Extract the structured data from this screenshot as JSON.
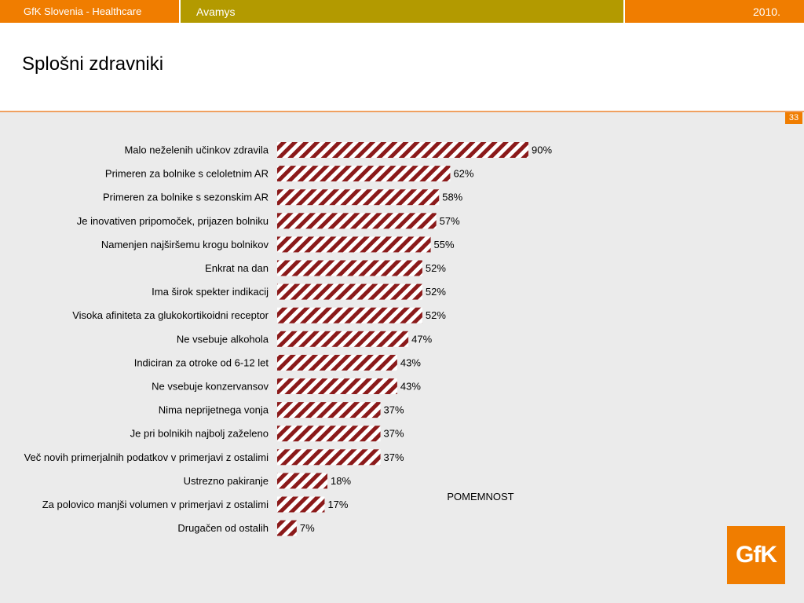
{
  "header": {
    "left": "GfK Slovenia - Healthcare",
    "middle": "Avamys",
    "right": "2010."
  },
  "page_title": "Splošni zdravniki",
  "page_number": "33",
  "logo_text": "GfK",
  "colors": {
    "accent": "#f07d00",
    "olive": "#b39a00",
    "bar_red": "#8b1a1a",
    "panel": "#ebebeb"
  },
  "chart_data": {
    "type": "bar",
    "orientation": "horizontal",
    "annotation": "POMEMNOST",
    "categories": [
      "Malo neželenih učinkov zdravila",
      "Primeren za bolnike s celoletnim AR",
      "Primeren za bolnike s sezonskim AR",
      "Je inovativen pripomoček,  prijazen bolniku",
      "Namenjen najširšemu krogu bolnikov",
      "Enkrat na dan",
      "Ima širok spekter indikacij",
      "Visoka afiniteta za glukokortikoidni receptor",
      "Ne vsebuje alkohola",
      "Indiciran za otroke od 6-12 let",
      "Ne vsebuje konzervansov",
      "Nima neprijetnega vonja",
      "Je pri bolnikih najbolj zaželeno",
      "Več novih primerjalnih podatkov v primerjavi z ostalimi",
      "Ustrezno pakiranje",
      "Za polovico manjši volumen v primerjavi z ostalimi",
      "Drugačen od ostalih"
    ],
    "values": [
      90,
      62,
      58,
      57,
      55,
      52,
      52,
      52,
      47,
      43,
      43,
      37,
      37,
      37,
      18,
      17,
      7
    ],
    "value_labels": [
      "90%",
      "62%",
      "58%",
      "57%",
      "55%",
      "52%",
      "52%",
      "52%",
      "47%",
      "43%",
      "43%",
      "37%",
      "37%",
      "37%",
      "18%",
      "17%",
      "7%"
    ],
    "xlim": [
      0,
      100
    ],
    "grid": false,
    "bar_pattern": "diagonal-stripes"
  }
}
